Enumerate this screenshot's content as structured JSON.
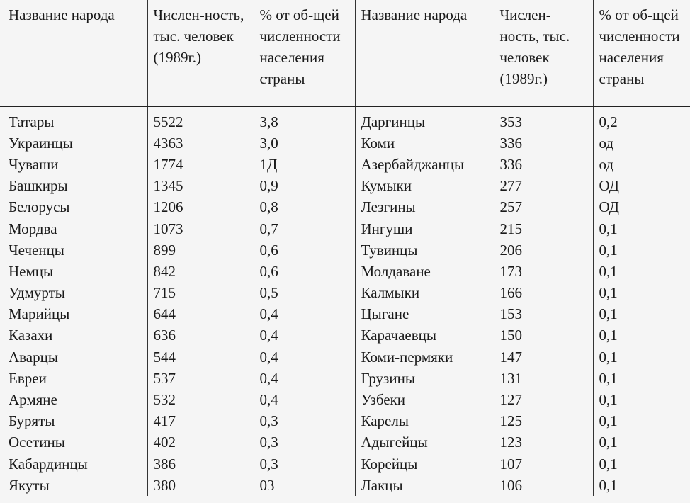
{
  "table": {
    "headers": [
      "Название народа",
      "Числен-ность, тыс. человек (1989г.)",
      "% от об-щей численности населения страны",
      "Название народа",
      "Числен-ность, тыс. человек (1989г.)",
      "% от об-щей численности населения страны"
    ],
    "rows": [
      [
        "Татары",
        "5522",
        "3,8",
        "Даргинцы",
        "353",
        "0,2"
      ],
      [
        "Украинцы",
        "4363",
        "3,0",
        "Коми",
        "336",
        "од"
      ],
      [
        "Чуваши",
        "1774",
        "1Д",
        "Азербайджанцы",
        "336",
        "од"
      ],
      [
        "Башкиры",
        "1345",
        "0,9",
        "Кумыки",
        "277",
        "ОД"
      ],
      [
        "Белорусы",
        "1206",
        "0,8",
        "Лезгины",
        "257",
        "ОД"
      ],
      [
        "Мордва",
        "1073",
        "0,7",
        "Ингуши",
        "215",
        "0,1"
      ],
      [
        "Чеченцы",
        "899",
        "0,6",
        "Тувинцы",
        "206",
        "0,1"
      ],
      [
        "Немцы",
        "842",
        "0,6",
        "Молдаване",
        "173",
        "0,1"
      ],
      [
        "Удмурты",
        "715",
        "0,5",
        "Калмыки",
        "166",
        "0,1"
      ],
      [
        "Марийцы",
        "644",
        "0,4",
        "Цыгане",
        "153",
        "0,1"
      ],
      [
        "Казахи",
        "636",
        "0,4",
        "Карачаевцы",
        "150",
        "0,1"
      ],
      [
        "Аварцы",
        "544",
        "0,4",
        "Коми-пермяки",
        "147",
        "0,1"
      ],
      [
        "Евреи",
        "537",
        "0,4",
        "Грузины",
        "131",
        "0,1"
      ],
      [
        "Армяне",
        "532",
        "0,4",
        "Узбеки",
        "127",
        "0,1"
      ],
      [
        "Буряты",
        "417",
        "0,3",
        "Карелы",
        "125",
        "0,1"
      ],
      [
        "Осетины",
        "402",
        "0,3",
        "Адыгейцы",
        "123",
        "0,1"
      ],
      [
        "Кабардинцы",
        "386",
        "0,3",
        "Корейцы",
        "107",
        "0,1"
      ],
      [
        "Якуты",
        "380",
        "03",
        "Лакцы",
        "106",
        "0,1"
      ]
    ]
  }
}
